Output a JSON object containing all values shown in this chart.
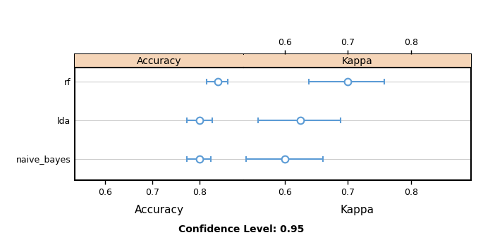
{
  "models": [
    "rf",
    "lda",
    "naive_bayes"
  ],
  "accuracy_centers": [
    0.84,
    0.8,
    0.8
  ],
  "accuracy_low": [
    0.815,
    0.773,
    0.773
  ],
  "accuracy_high": [
    0.86,
    0.827,
    0.825
  ],
  "kappa_centers": [
    0.7,
    0.625,
    0.6
  ],
  "kappa_low": [
    0.638,
    0.558,
    0.538
  ],
  "kappa_high": [
    0.758,
    0.688,
    0.66
  ],
  "acc_xlim": [
    0.535,
    0.895
  ],
  "kappa_xlim": [
    0.535,
    0.895
  ],
  "acc_xticks": [
    0.6,
    0.7,
    0.8
  ],
  "kappa_xticks": [
    0.6,
    0.7,
    0.8
  ],
  "header_color": "#f5d5b8",
  "point_color": "#5b9bd5",
  "line_color": "#5b9bd5",
  "grid_color": "#cccccc",
  "bg_color": "#ffffff",
  "confidence_level": "0.95",
  "acc_label": "Accuracy",
  "kappa_label": "Kappa"
}
